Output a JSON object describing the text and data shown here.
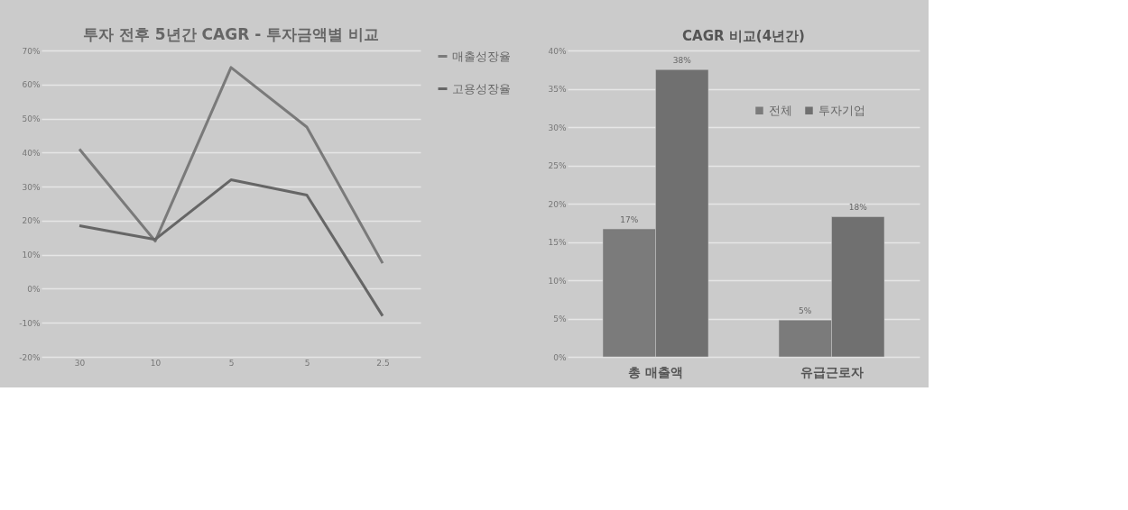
{
  "chart_data": [
    {
      "type": "line",
      "title": "투자 전후 5년간 CAGR - 투자금액별 비교",
      "categories": [
        "30",
        "10",
        "5",
        "5",
        "2.5"
      ],
      "series": [
        {
          "name": "매출성장율",
          "color": "#7a7a7a",
          "values": [
            41,
            14,
            65,
            47.5,
            7.5
          ]
        },
        {
          "name": "고용성장율",
          "color": "#666666",
          "values": [
            18.5,
            14.5,
            32,
            27.5,
            -8
          ]
        }
      ],
      "ylim": [
        -20,
        70
      ],
      "yticks": [
        {
          "value": -20,
          "label": "-20%"
        },
        {
          "value": -10,
          "label": "-10%"
        },
        {
          "value": 0,
          "label": "0%"
        },
        {
          "value": 10,
          "label": "10%"
        },
        {
          "value": 20,
          "label": "20%"
        },
        {
          "value": 30,
          "label": "30%"
        },
        {
          "value": 40,
          "label": "40%"
        },
        {
          "value": 50,
          "label": "50%"
        },
        {
          "value": 60,
          "label": "60%"
        },
        {
          "value": 70,
          "label": "70%"
        }
      ],
      "grid": "y",
      "legend": "right",
      "marker": "none",
      "line_style": "solid"
    },
    {
      "type": "bar",
      "title": "CAGR 비교(4년간)",
      "categories": [
        "총 매출액",
        "유급근로자"
      ],
      "series": [
        {
          "name": "전체",
          "color": "#7b7b7b",
          "values": [
            16.7,
            4.8
          ],
          "value_labels": [
            "17%",
            "5%"
          ]
        },
        {
          "name": "투자기업",
          "color": "#707070",
          "values": [
            37.5,
            18.3
          ],
          "value_labels": [
            "38%",
            "18%"
          ]
        }
      ],
      "ylim": [
        0,
        40
      ],
      "yticks": [
        {
          "value": 0,
          "label": "0%"
        },
        {
          "value": 5,
          "label": "5%"
        },
        {
          "value": 10,
          "label": "10%"
        },
        {
          "value": 15,
          "label": "15%"
        },
        {
          "value": 20,
          "label": "20%"
        },
        {
          "value": 25,
          "label": "25%"
        },
        {
          "value": 30,
          "label": "30%"
        },
        {
          "value": 35,
          "label": "35%"
        },
        {
          "value": 40,
          "label": "40%"
        }
      ],
      "grid": "y",
      "legend": "top right"
    }
  ]
}
